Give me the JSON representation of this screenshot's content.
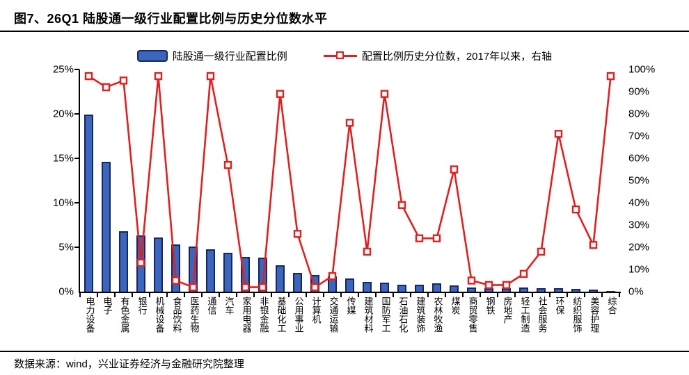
{
  "figure": {
    "title": "图7、26Q1 陆股通一级行业配置比例与历史分位数水平",
    "source": "数据来源：wind，兴业证券经济与金融研究院整理"
  },
  "legend": {
    "bar_label": "陆股通一级行业配置比例",
    "line_label": "配置比例历史分位数，2017年以来，右轴"
  },
  "colors": {
    "bar_fill": "#3A66BE",
    "bar_border": "#17265F",
    "line": "#E02020",
    "marker_fill": "#FFFFFF",
    "axis": "#000000",
    "text": "#000000"
  },
  "chart_data": {
    "type": "bar",
    "subtype": "bar+line combo, dual axis",
    "title": "26Q1 陆股通一级行业配置比例与历史分位数水平",
    "categories": [
      "电力设备",
      "电子",
      "有色金属",
      "银行",
      "机械设备",
      "食品饮料",
      "医药生物",
      "通信",
      "汽车",
      "家用电器",
      "非银金融",
      "基础化工",
      "公用事业",
      "计算机",
      "交通运输",
      "传媒",
      "建筑材料",
      "国防军工",
      "石油石化",
      "建筑装饰",
      "农林牧渔",
      "煤炭",
      "商贸零售",
      "钢铁",
      "房地产",
      "轻工制造",
      "社会服务",
      "环保",
      "纺织服饰",
      "美容护理",
      "综合"
    ],
    "series": [
      {
        "name": "陆股通一级行业配置比例",
        "type": "bar",
        "axis": "left",
        "unit": "%",
        "values": [
          19.9,
          14.6,
          6.8,
          6.3,
          6.1,
          5.3,
          5.1,
          4.8,
          4.4,
          3.9,
          3.8,
          3.0,
          2.1,
          1.9,
          1.7,
          1.5,
          1.1,
          1.0,
          0.8,
          0.8,
          0.9,
          0.7,
          0.5,
          0.4,
          0.4,
          0.5,
          0.4,
          0.4,
          0.3,
          0.2,
          0.1
        ]
      },
      {
        "name": "配置比例历史分位数，2017年以来，右轴",
        "type": "line",
        "axis": "right",
        "unit": "%",
        "values": [
          97,
          92,
          95,
          13,
          97,
          5,
          2,
          97,
          57,
          2,
          2,
          89,
          26,
          2,
          7,
          76,
          18,
          89,
          39,
          24,
          24,
          55,
          5,
          3,
          3,
          8,
          18,
          71,
          37,
          21,
          97
        ]
      }
    ],
    "left_axis": {
      "min": 0,
      "max": 25,
      "step": 5,
      "format": "percent",
      "tick_labels": [
        "0%",
        "5%",
        "10%",
        "15%",
        "20%",
        "25%"
      ]
    },
    "right_axis": {
      "min": 0,
      "max": 100,
      "step": 10,
      "format": "percent",
      "tick_labels": [
        "0%",
        "10%",
        "20%",
        "30%",
        "40%",
        "50%",
        "60%",
        "70%",
        "80%",
        "90%",
        "100%"
      ]
    },
    "grid": false,
    "legend_position": "top-center"
  }
}
